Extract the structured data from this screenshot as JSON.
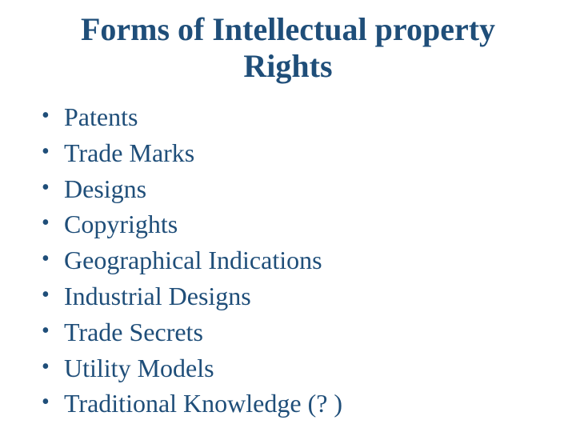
{
  "title": "Forms of Intellectual property\nRights",
  "items": [
    "Patents",
    "Trade Marks",
    "Designs",
    "Copyrights",
    "Geographical Indications",
    "Industrial Designs",
    "Trade Secrets",
    "Utility Models",
    "Traditional Knowledge (? )"
  ],
  "colors": {
    "text": "#1f4e79",
    "background": "#ffffff"
  },
  "typography": {
    "title_fontsize": 40,
    "item_fontsize": 32,
    "font_family": "Times New Roman"
  }
}
